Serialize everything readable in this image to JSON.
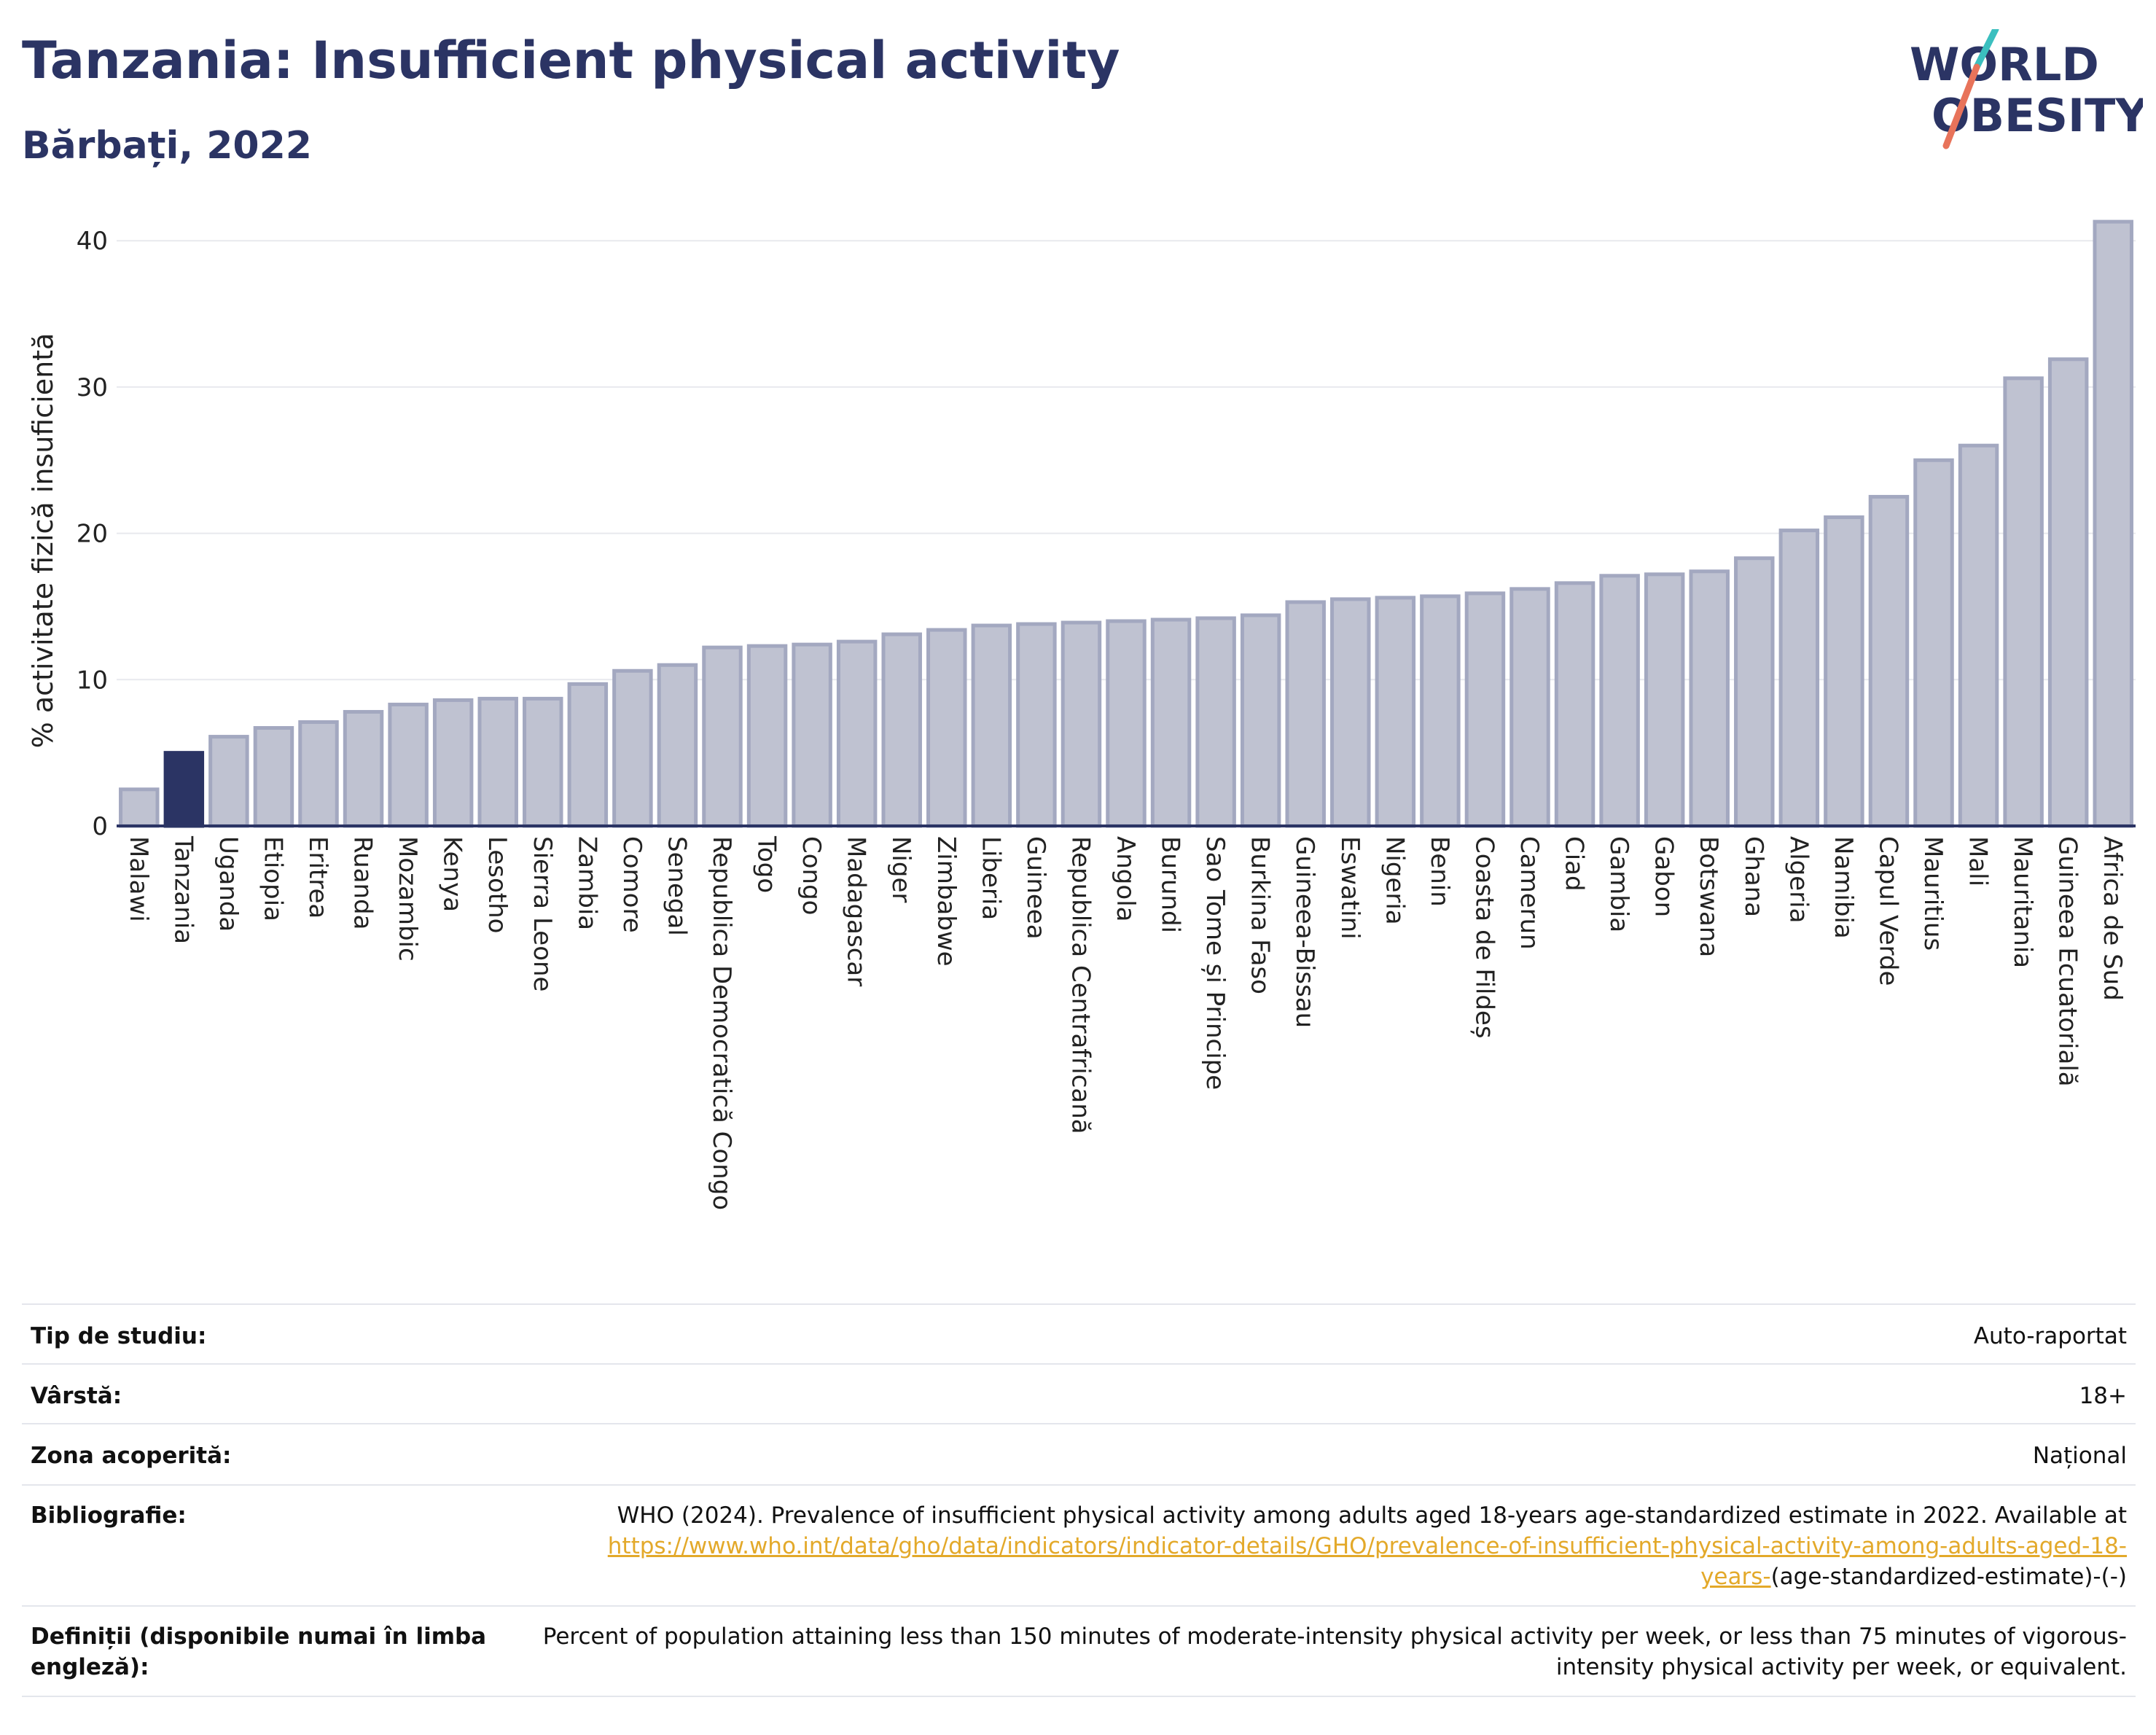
{
  "header": {
    "title": "Tanzania: Insufficient physical activity",
    "subtitle": "Bărbați, 2022"
  },
  "logo": {
    "line1": "WORLD",
    "line2": "OBESITY",
    "colors": {
      "text": "#2b3464",
      "slash_teal": "#3bbfbf",
      "slash_coral": "#e8735a"
    }
  },
  "colors": {
    "highlight_bar": "#2b3464",
    "bar_fill": "#bfc2d1",
    "bar_stroke": "#a3a8c0",
    "axis": "#2b3464",
    "grid": "#e8e9ee"
  },
  "chart_data": {
    "type": "bar",
    "title": "",
    "xlabel": "",
    "ylabel": "% activitate fizică insuficientă",
    "ylim": [
      0,
      43
    ],
    "yticks": [
      0,
      10,
      20,
      30,
      40
    ],
    "grid": true,
    "highlight": "Tanzania",
    "categories": [
      "Malawi",
      "Tanzania",
      "Uganda",
      "Etiopia",
      "Eritrea",
      "Ruanda",
      "Mozambic",
      "Kenya",
      "Lesotho",
      "Sierra Leone",
      "Zambia",
      "Comore",
      "Senegal",
      "Republica Democratică Congo",
      "Togo",
      "Congo",
      "Madagascar",
      "Niger",
      "Zimbabwe",
      "Liberia",
      "Guineea",
      "Republica Centrafricană",
      "Angola",
      "Burundi",
      "Sao Tome și Principe",
      "Burkina Faso",
      "Guineea-Bissau",
      "Eswatini",
      "Nigeria",
      "Benin",
      "Coasta de Fildeș",
      "Camerun",
      "Ciad",
      "Gambia",
      "Gabon",
      "Botswana",
      "Ghana",
      "Algeria",
      "Namibia",
      "Capul Verde",
      "Mauritius",
      "Mali",
      "Mauritania",
      "Guineea Ecuatorială",
      "Africa de Sud"
    ],
    "values": [
      2.5,
      5.0,
      6.1,
      6.7,
      7.1,
      7.8,
      8.3,
      8.6,
      8.7,
      8.7,
      9.7,
      10.6,
      11.0,
      12.2,
      12.3,
      12.4,
      12.6,
      13.1,
      13.4,
      13.7,
      13.8,
      13.9,
      14.0,
      14.1,
      14.2,
      14.4,
      15.3,
      15.5,
      15.6,
      15.7,
      15.9,
      16.2,
      16.6,
      17.1,
      17.2,
      17.4,
      18.3,
      20.2,
      21.1,
      22.5,
      25.0,
      26.0,
      30.6,
      31.9,
      41.3
    ]
  },
  "info_table": {
    "study_type_label": "Tip de studiu:",
    "study_type_value": "Auto-raportat",
    "age_label": "Vârstă:",
    "age_value": "18+",
    "coverage_label": "Zona acoperită:",
    "coverage_value": "Național",
    "bibliography_label": "Bibliografie:",
    "bibliography_text": "WHO (2024). Prevalence of insufficient physical activity among adults aged 18-years age-standardized estimate in 2022. Available at",
    "bibliography_link": "https://www.who.int/data/gho/data/indicators/indicator-details/GHO/prevalence-of-insufficient-physical-activity-among-adults-aged-18-years-",
    "bibliography_suffix": "(age-standardized-estimate)-(-)",
    "definitions_label": "Definiții (disponibile numai în limba engleză):",
    "definitions_value": "Percent of population attaining less than 150 minutes of moderate-intensity physical activity per week, or less than 75 minutes of vigorous-intensity physical activity per week, or equivalent."
  }
}
